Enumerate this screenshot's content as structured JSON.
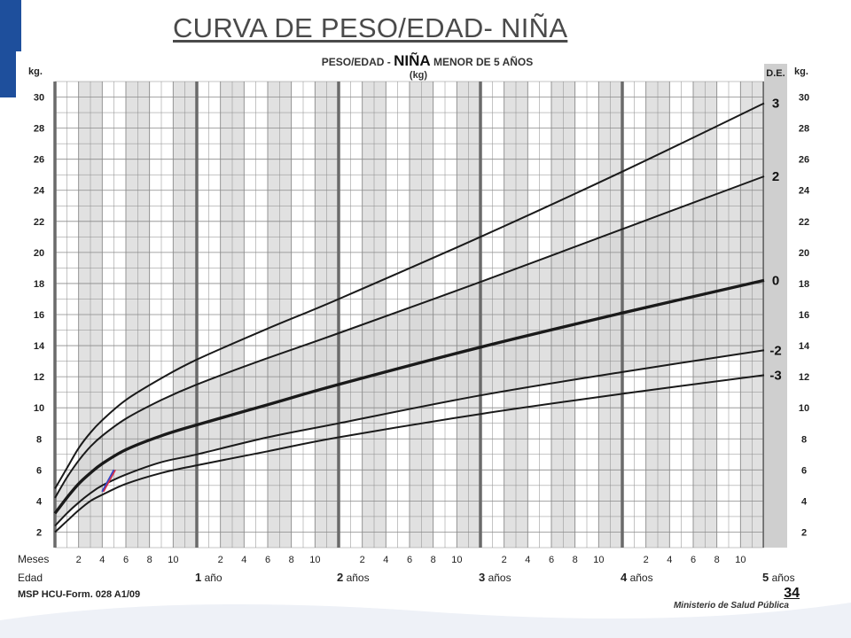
{
  "slide": {
    "title": "CURVA DE PESO/EDAD- NIÑA",
    "page_number": "34",
    "ministry": "Ministerio de Salud Pública"
  },
  "chart_data": {
    "type": "line",
    "title_prefix": "PESO/EDAD - ",
    "title_bold": "NIÑA",
    "title_suffix": " MENOR DE 5 AÑOS",
    "title_unit": "(kg)",
    "ylabel": "kg.",
    "ylabel_right": "kg.",
    "de_label": "D.E.",
    "form_label": "MSP HCU-Form. 028 A1/09",
    "x_row_months_label": "Meses",
    "x_row_age_label": "Edad",
    "xlim": [
      0,
      60
    ],
    "ylim": [
      1,
      31
    ],
    "y_ticks": [
      2,
      4,
      6,
      8,
      10,
      12,
      14,
      16,
      18,
      20,
      22,
      24,
      26,
      28,
      30
    ],
    "month_ticks": [
      "2",
      "4",
      "6",
      "8",
      "10"
    ],
    "year_labels": [
      "1 año",
      "2 años",
      "3 años",
      "4 años",
      "5 años"
    ],
    "series": [
      {
        "name": "3",
        "x": [
          0,
          1,
          2,
          3,
          4,
          6,
          9,
          12,
          18,
          24,
          36,
          48,
          60
        ],
        "y": [
          4.8,
          6.1,
          7.4,
          8.4,
          9.2,
          10.5,
          11.9,
          13.1,
          15.1,
          17.0,
          21.0,
          25.2,
          29.6
        ]
      },
      {
        "name": "2",
        "x": [
          0,
          1,
          2,
          3,
          4,
          6,
          9,
          12,
          18,
          24,
          36,
          48,
          60
        ],
        "y": [
          4.2,
          5.5,
          6.6,
          7.5,
          8.2,
          9.3,
          10.5,
          11.5,
          13.2,
          14.8,
          18.1,
          21.5,
          24.9
        ]
      },
      {
        "name": "0",
        "x": [
          0,
          1,
          2,
          3,
          4,
          6,
          9,
          12,
          18,
          24,
          36,
          48,
          60
        ],
        "y": [
          3.2,
          4.2,
          5.1,
          5.8,
          6.4,
          7.3,
          8.2,
          8.9,
          10.2,
          11.5,
          13.9,
          16.1,
          18.2
        ]
      },
      {
        "name": "-2",
        "x": [
          0,
          1,
          2,
          3,
          4,
          6,
          9,
          12,
          18,
          24,
          36,
          48,
          60
        ],
        "y": [
          2.4,
          3.2,
          3.9,
          4.5,
          5.0,
          5.7,
          6.5,
          7.0,
          8.1,
          9.0,
          10.8,
          12.3,
          13.7
        ]
      },
      {
        "name": "-3",
        "x": [
          0,
          1,
          2,
          3,
          4,
          6,
          9,
          12,
          18,
          24,
          36,
          48,
          60
        ],
        "y": [
          2.0,
          2.7,
          3.4,
          4.0,
          4.4,
          5.1,
          5.8,
          6.3,
          7.2,
          8.1,
          9.6,
          10.9,
          12.1
        ]
      }
    ],
    "patient_trace": {
      "x": [
        4,
        5
      ],
      "y": [
        4.6,
        6.0
      ],
      "color": "#d8304a",
      "color2": "#3346c8"
    },
    "colors": {
      "band_fill": "#d6d6d6",
      "stripe_fill": "#dcdcdc",
      "grid_minor": "#8a8a8a",
      "grid_major": "#6a6a6a",
      "curve": "#1a1a1a",
      "side_panel": "#cfcfcf"
    }
  }
}
